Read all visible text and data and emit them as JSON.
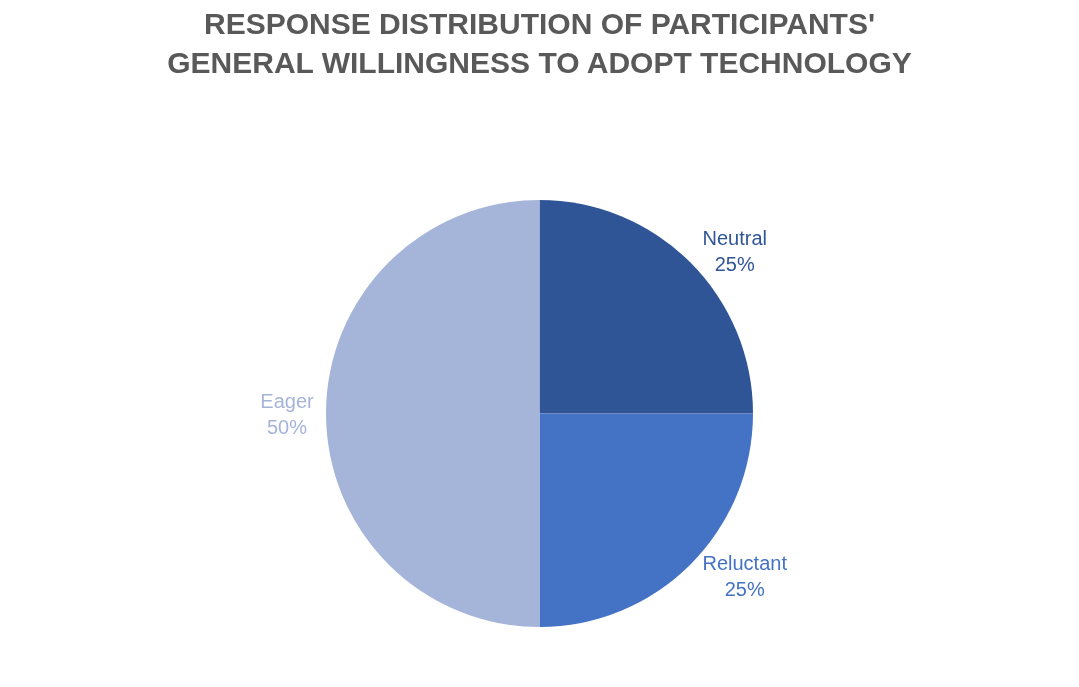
{
  "chart_data": {
    "type": "pie",
    "title": "RESPONSE DISTRIBUTION OF PARTICIPANTS' GENERAL WILLINGNESS TO ADOPT TECHNOLOGY",
    "categories": [
      "Neutral",
      "Reluctant",
      "Eager"
    ],
    "values": [
      25,
      25,
      50
    ],
    "value_labels": [
      "25%",
      "25%",
      "50%"
    ],
    "colors": [
      "#2f5597",
      "#4472c4",
      "#a5b4d9"
    ],
    "legend": false
  }
}
